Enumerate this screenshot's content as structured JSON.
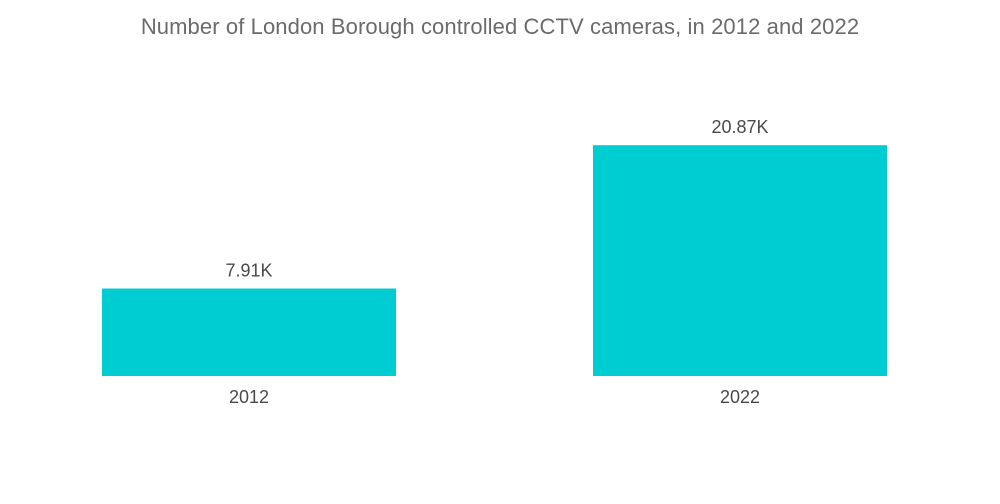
{
  "chart_data": {
    "type": "bar",
    "title": "Number of London Borough controlled CCTV cameras, in 2012 and 2022",
    "categories": [
      "2012",
      "2022"
    ],
    "values": [
      7.91,
      20.87
    ],
    "value_labels": [
      "7.91K",
      "20.87K"
    ],
    "unit": "K",
    "xlabel": "",
    "ylabel": "",
    "ylim": [
      0,
      34
    ],
    "grid": false,
    "legend": "none",
    "bar_color": "#00CDD1"
  }
}
